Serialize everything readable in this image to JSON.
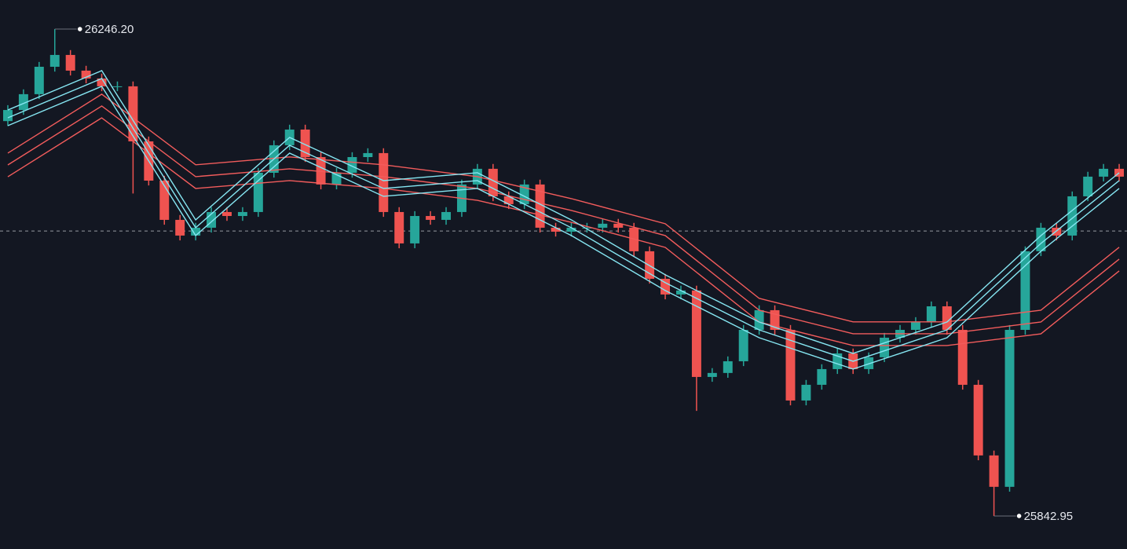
{
  "chart_data": {
    "type": "candlestick",
    "open": [
      26170.0,
      26179.2,
      26192.3,
      26215.0,
      26224.8,
      26211.8,
      26205.3,
      26198.8,
      26198.8,
      26153.2,
      26120.7,
      26088.2,
      26075.2,
      26081.7,
      26094.7,
      26091.4,
      26094.7,
      26127.2,
      26150.0,
      26163.0,
      26140.2,
      26117.5,
      26127.2,
      26140.2,
      26143.5,
      26094.7,
      26068.7,
      26091.4,
      26088.2,
      26094.7,
      26117.5,
      26130.5,
      26107.7,
      26101.2,
      26117.5,
      26081.7,
      26078.4,
      26081.7,
      26081.7,
      26085.0,
      26081.7,
      26062.2,
      26039.4,
      26026.4,
      26029.7,
      25958.1,
      25961.4,
      25971.1,
      25997.1,
      26013.4,
      25997.1,
      25938.6,
      25951.6,
      25964.6,
      25977.6,
      25964.6,
      25974.4,
      25990.6,
      25997.1,
      26003.6,
      26016.6,
      25997.1,
      25951.6,
      25893.1,
      25867.1,
      25997.1,
      26062.2,
      26081.7,
      26075.2,
      26107.7,
      26124.0,
      26130.5
    ],
    "high": [
      26183.2,
      26196.3,
      26219.0,
      26246.2,
      26228.8,
      26215.8,
      26209.3,
      26202.8,
      26202.8,
      26157.2,
      26124.7,
      26092.2,
      26085.7,
      26098.7,
      26098.7,
      26098.7,
      26131.2,
      26154.0,
      26167.0,
      26167.0,
      26144.2,
      26131.2,
      26144.2,
      26147.5,
      26147.5,
      26098.7,
      26095.4,
      26095.4,
      26098.7,
      26121.5,
      26134.5,
      26134.5,
      26111.7,
      26121.5,
      26121.5,
      26085.7,
      26085.7,
      26085.7,
      26089.0,
      26089.0,
      26085.7,
      26066.2,
      26043.4,
      26033.7,
      26033.7,
      25965.4,
      25975.1,
      26001.1,
      26017.4,
      26017.4,
      26001.1,
      25955.6,
      25968.6,
      25981.6,
      25981.6,
      25978.4,
      25994.6,
      26001.1,
      26007.6,
      26020.6,
      26020.6,
      26001.1,
      25955.6,
      25897.1,
      26001.1,
      26066.2,
      26085.7,
      26085.7,
      26111.7,
      26128.0,
      26134.5,
      26134.5
    ],
    "low": [
      26166.0,
      26175.2,
      26188.3,
      26211.0,
      26207.8,
      26201.3,
      26194.8,
      26194.8,
      26110.0,
      26116.7,
      26084.2,
      26071.2,
      26071.2,
      26077.7,
      26087.4,
      26087.4,
      26090.7,
      26123.2,
      26146.0,
      26136.2,
      26113.5,
      26113.5,
      26123.2,
      26136.2,
      26090.7,
      26064.7,
      26064.7,
      26084.2,
      26084.2,
      26090.7,
      26113.5,
      26103.7,
      26097.2,
      26097.2,
      26077.7,
      26074.4,
      26074.4,
      26077.7,
      26077.7,
      26077.7,
      26058.2,
      26035.4,
      26022.4,
      26022.4,
      25930.0,
      25954.1,
      25957.4,
      25967.1,
      25993.1,
      25993.1,
      25934.6,
      25934.6,
      25947.6,
      25960.6,
      25960.6,
      25960.6,
      25970.4,
      25986.6,
      25993.1,
      25999.6,
      25993.1,
      25947.6,
      25889.1,
      25842.95,
      25863.1,
      25993.1,
      26058.2,
      26071.2,
      26071.2,
      26103.7,
      26120.0,
      26120.0
    ],
    "close": [
      26179.2,
      26192.3,
      26215.0,
      26224.8,
      26211.8,
      26205.3,
      26198.8,
      26198.8,
      26153.2,
      26120.7,
      26088.2,
      26075.2,
      26081.7,
      26094.7,
      26091.4,
      26094.7,
      26127.2,
      26150.0,
      26163.0,
      26140.2,
      26117.5,
      26127.2,
      26140.2,
      26143.5,
      26094.7,
      26068.7,
      26091.4,
      26088.2,
      26094.7,
      26117.5,
      26130.5,
      26107.7,
      26101.2,
      26117.5,
      26081.7,
      26078.4,
      26081.7,
      26081.7,
      26085.0,
      26081.7,
      26062.2,
      26039.4,
      26026.4,
      26029.7,
      25958.1,
      25961.4,
      25971.1,
      25997.1,
      26013.4,
      25997.1,
      25938.6,
      25951.6,
      25964.6,
      25977.6,
      25964.6,
      25974.4,
      25990.6,
      25997.1,
      26003.6,
      26016.6,
      25997.1,
      25951.6,
      25893.1,
      25867.1,
      25997.1,
      26062.2,
      26081.7,
      26075.2,
      26107.7,
      26124.0,
      26130.5,
      26124.0
    ],
    "up_color": "#26a69a",
    "down_color": "#ef5350",
    "ylim": [
      25815.6,
      26270.3
    ],
    "price_line": 26079.0,
    "ma_x": [
      0,
      6,
      12,
      18,
      24,
      30,
      36,
      42,
      48,
      54,
      60,
      66,
      71
    ],
    "series": [
      {
        "color": "#f25c5c",
        "values": [
          26143.5,
          26192.3,
          26133.8,
          26140.3,
          26133.8,
          26124.0,
          26105.8,
          26085.0,
          26023.2,
          26003.7,
          26003.7,
          26013.4,
          26065.5
        ]
      },
      {
        "color": "#f25c5c",
        "values": [
          26133.7,
          26182.5,
          26124.0,
          26130.5,
          26124.0,
          26114.2,
          26096.0,
          26075.2,
          26013.4,
          25993.9,
          25993.9,
          26003.6,
          26055.7
        ]
      },
      {
        "color": "#f25c5c",
        "values": [
          26123.9,
          26172.7,
          26114.2,
          26120.7,
          26114.2,
          26104.4,
          26086.2,
          26065.4,
          26003.6,
          25984.1,
          25984.1,
          25993.8,
          26045.9
        ]
      },
      {
        "color": "#86e6f2",
        "values": [
          26179.2,
          26211.8,
          26088.2,
          26156.5,
          26120.7,
          26127.2,
          26088.2,
          26042.7,
          26003.6,
          25977.6,
          26003.6,
          26075.2,
          26127.2
        ]
      },
      {
        "color": "#86e6f2",
        "values": [
          26172.7,
          26205.3,
          26081.7,
          26150.0,
          26114.2,
          26120.7,
          26081.7,
          26036.2,
          25997.1,
          25971.1,
          25997.1,
          26068.7,
          26120.7
        ]
      },
      {
        "color": "#86e6f2",
        "values": [
          26166.2,
          26198.8,
          26075.2,
          26143.5,
          26107.7,
          26114.2,
          26075.2,
          26029.7,
          25990.6,
          25964.6,
          25990.6,
          26062.2,
          26114.2
        ]
      }
    ],
    "annotations": [
      {
        "label": "26246.20",
        "value": 26246.2,
        "index": 3
      },
      {
        "label": "25842.95",
        "value": 25842.95,
        "index": 63
      }
    ]
  }
}
